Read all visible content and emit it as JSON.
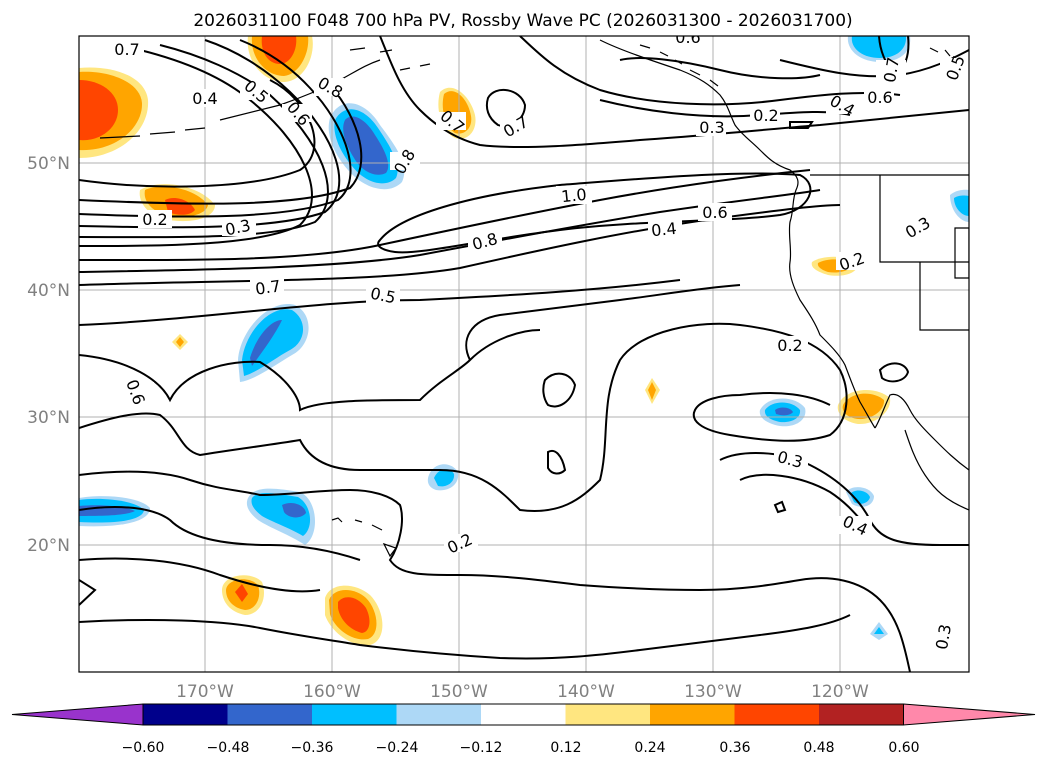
{
  "title": "2026031100 F048 700 hPa PV, Rossby Wave PC (2026031300 - 2026031700)",
  "map": {
    "lon_labels": [
      "170°W",
      "160°W",
      "150°W",
      "140°W",
      "130°W",
      "120°W"
    ],
    "lat_labels": [
      "50°N",
      "40°N",
      "30°N",
      "20°N"
    ]
  },
  "contour_labels": [
    "0.7",
    "0.4",
    "0.5",
    "0.6",
    "0.8",
    "0.7",
    "0.7",
    "0.8",
    "0.6",
    "0.2",
    "0.3",
    "0.4",
    "0.6",
    "0.7",
    "0.5",
    "0.2",
    "0.3",
    "1.0",
    "0.8",
    "0.6",
    "0.4",
    "0.3",
    "0.2",
    "0.7",
    "0.5",
    "0.6",
    "0.2",
    "0.3",
    "0.4",
    "0.2",
    "0.3"
  ],
  "colorbar": {
    "colors": [
      "#9933cc",
      "#00008b",
      "#3366cc",
      "#00bfff",
      "#add8f6",
      "#ffffff",
      "#ffe680",
      "#ffa500",
      "#ff4500",
      "#b22222",
      "#ff88aa"
    ],
    "tick_labels": [
      "−0.60",
      "−0.48",
      "−0.36",
      "−0.24",
      "−0.12",
      "0.12",
      "0.24",
      "0.36",
      "0.48",
      "0.60"
    ]
  }
}
